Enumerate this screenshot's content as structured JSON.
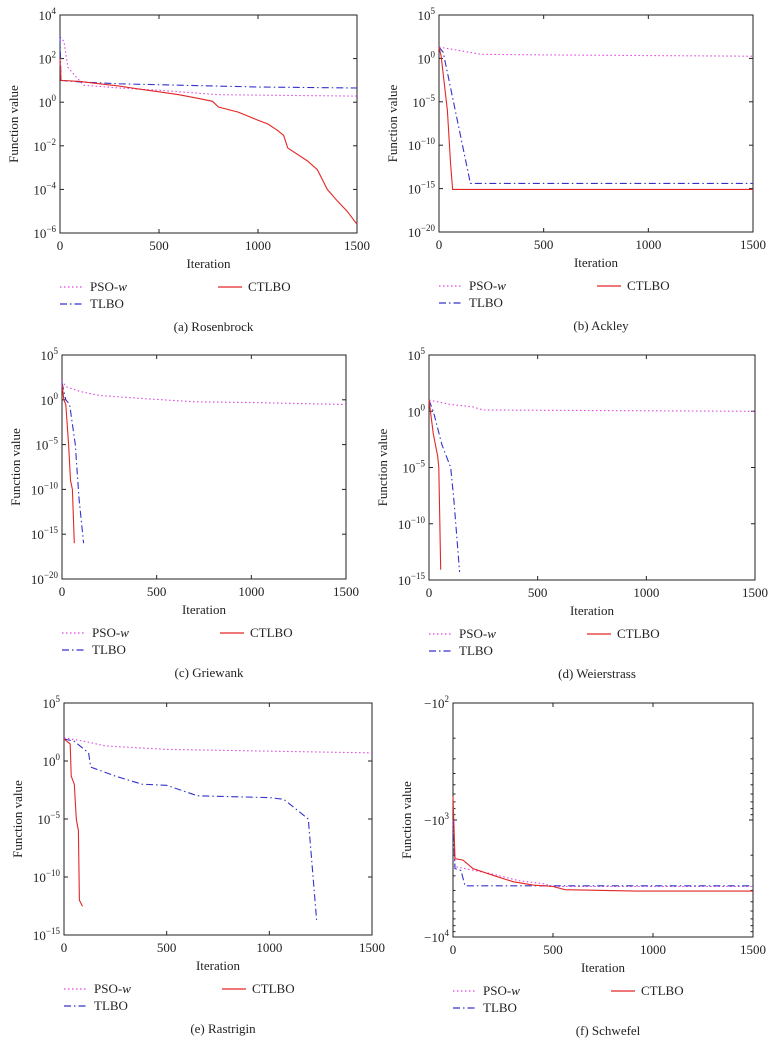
{
  "chart_data": [
    {
      "type": "line",
      "title": "(a)  Rosenbrock",
      "xlabel": "Iteration",
      "ylabel": "Function value",
      "xlim": [
        0,
        1500
      ],
      "ylim": [
        1e-06,
        10000.0
      ],
      "yscale": "log",
      "x_ticks": [
        "0",
        "500",
        "1000",
        "1500"
      ],
      "y_ticks": [
        "10^4",
        "10^2",
        "10^0",
        "10^-2",
        "10^-4",
        "10^-6"
      ],
      "series": [
        {
          "name": "PSO-w",
          "points": [
            [
              0,
              1000
            ],
            [
              20,
              600
            ],
            [
              40,
              40
            ],
            [
              80,
              15
            ],
            [
              120,
              6
            ],
            [
              300,
              4.5
            ],
            [
              500,
              3.5
            ],
            [
              800,
              2.2
            ],
            [
              1500,
              1.9
            ]
          ]
        },
        {
          "name": "TLBO",
          "points": [
            [
              0,
              1000
            ],
            [
              5,
              10
            ],
            [
              100,
              8.5
            ],
            [
              300,
              7
            ],
            [
              600,
              6
            ],
            [
              1000,
              5
            ],
            [
              1500,
              4.5
            ]
          ]
        },
        {
          "name": "CTLBO",
          "points": [
            [
              0,
              100
            ],
            [
              5,
              10
            ],
            [
              100,
              9
            ],
            [
              200,
              7
            ],
            [
              300,
              5.5
            ],
            [
              400,
              4
            ],
            [
              500,
              3
            ],
            [
              600,
              2.2
            ],
            [
              700,
              1.5
            ],
            [
              770,
              1.1
            ],
            [
              800,
              0.6
            ],
            [
              900,
              0.35
            ],
            [
              1000,
              0.15
            ],
            [
              1050,
              0.1
            ],
            [
              1100,
              0.05
            ],
            [
              1130,
              0.03
            ],
            [
              1150,
              0.008
            ],
            [
              1250,
              0.002
            ],
            [
              1300,
              0.0008
            ],
            [
              1350,
              0.0001
            ],
            [
              1400,
              3e-05
            ],
            [
              1450,
              1e-05
            ],
            [
              1500,
              2.5e-06
            ]
          ]
        }
      ]
    },
    {
      "type": "line",
      "title": "(b)  Ackley",
      "xlabel": "Iteration",
      "ylabel": "Function value",
      "xlim": [
        0,
        1500
      ],
      "ylim": [
        1e-20,
        100000.0
      ],
      "yscale": "log",
      "x_ticks": [
        "0",
        "500",
        "1000",
        "1500"
      ],
      "y_ticks": [
        "10^5",
        "10^0",
        "10^-5",
        "10^-10",
        "10^-15",
        "10^-20"
      ],
      "series": [
        {
          "name": "PSO-w",
          "points": [
            [
              0,
              20
            ],
            [
              100,
              8
            ],
            [
              200,
              3
            ],
            [
              500,
              2.5
            ],
            [
              1500,
              1.8
            ]
          ]
        },
        {
          "name": "TLBO",
          "points": [
            [
              0,
              20
            ],
            [
              20,
              5
            ],
            [
              150,
              4e-15
            ],
            [
              1500,
              4e-15
            ]
          ]
        },
        {
          "name": "CTLBO",
          "points": [
            [
              0,
              20
            ],
            [
              10,
              2
            ],
            [
              40,
              1e-06
            ],
            [
              55,
              1e-12
            ],
            [
              65,
              8e-16
            ],
            [
              1500,
              8e-16
            ]
          ]
        }
      ]
    },
    {
      "type": "line",
      "title": "(c)  Griewank",
      "xlabel": "Iteration",
      "ylabel": "Function value",
      "xlim": [
        0,
        1500
      ],
      "ylim": [
        1e-20,
        100000.0
      ],
      "yscale": "log",
      "x_ticks": [
        "0",
        "500",
        "1000",
        "1500"
      ],
      "y_ticks": [
        "10^5",
        "10^0",
        "10^-5",
        "10^-10",
        "10^-15",
        "10^-20"
      ],
      "series": [
        {
          "name": "PSO-w",
          "points": [
            [
              0,
              150
            ],
            [
              20,
              30
            ],
            [
              100,
              8
            ],
            [
              200,
              3
            ],
            [
              400,
              1.5
            ],
            [
              700,
              0.6
            ],
            [
              1000,
              0.5
            ],
            [
              1500,
              0.3
            ]
          ]
        },
        {
          "name": "TLBO",
          "points": [
            [
              0,
              80
            ],
            [
              20,
              1
            ],
            [
              40,
              0.3
            ],
            [
              50,
              0.01
            ],
            [
              70,
              1e-05
            ],
            [
              90,
              1e-11
            ],
            [
              114,
              1e-16
            ]
          ]
        },
        {
          "name": "CTLBO",
          "points": [
            [
              0,
              50
            ],
            [
              10,
              1
            ],
            [
              20,
              0.3
            ],
            [
              35,
              1e-05
            ],
            [
              45,
              1e-09
            ],
            [
              55,
              1e-10
            ],
            [
              65,
              1e-16
            ]
          ]
        }
      ]
    },
    {
      "type": "line",
      "title": "(d)  Weierstrass",
      "xlabel": "Iteration",
      "ylabel": "Function value",
      "xlim": [
        0,
        1500
      ],
      "ylim": [
        1e-15,
        100000.0
      ],
      "yscale": "log",
      "x_ticks": [
        "0",
        "500",
        "1000",
        "1500"
      ],
      "y_ticks": [
        "10^5",
        "10^0",
        "10^-5",
        "10^-10",
        "10^-15"
      ],
      "series": [
        {
          "name": "PSO-w",
          "points": [
            [
              0,
              10
            ],
            [
              100,
              4
            ],
            [
              200,
              2.5
            ],
            [
              250,
              1.3
            ],
            [
              1500,
              1
            ]
          ]
        },
        {
          "name": "TLBO",
          "points": [
            [
              0,
              10
            ],
            [
              20,
              1
            ],
            [
              60,
              0.001
            ],
            [
              100,
              1e-05
            ],
            [
              115,
              1e-08
            ],
            [
              141,
              5e-15
            ]
          ]
        },
        {
          "name": "CTLBO",
          "points": [
            [
              0,
              10
            ],
            [
              20,
              0.01
            ],
            [
              40,
              0.0001
            ],
            [
              45,
              1e-05
            ],
            [
              54,
              8e-15
            ]
          ]
        }
      ]
    },
    {
      "type": "line",
      "title": "(e)  Rastrigin",
      "xlabel": "Iteration",
      "ylabel": "Function value",
      "xlim": [
        0,
        1500
      ],
      "ylim": [
        1e-15,
        100000.0
      ],
      "yscale": "log",
      "x_ticks": [
        "0",
        "500",
        "1000",
        "1500"
      ],
      "y_ticks": [
        "10^5",
        "10^0",
        "10^-5",
        "10^-10",
        "10^-15"
      ],
      "series": [
        {
          "name": "PSO-w",
          "points": [
            [
              0,
              100
            ],
            [
              100,
              50
            ],
            [
              200,
              20
            ],
            [
              500,
              10
            ],
            [
              1500,
              5
            ]
          ]
        },
        {
          "name": "TLBO",
          "points": [
            [
              0,
              80
            ],
            [
              50,
              50
            ],
            [
              120,
              5
            ],
            [
              130,
              0.3
            ],
            [
              250,
              0.05
            ],
            [
              380,
              0.01
            ],
            [
              500,
              0.008
            ],
            [
              650,
              0.001
            ],
            [
              1000,
              0.0007
            ],
            [
              1070,
              0.0005
            ],
            [
              1190,
              1e-05
            ],
            [
              1230,
              2e-14
            ]
          ]
        },
        {
          "name": "CTLBO",
          "points": [
            [
              0,
              80
            ],
            [
              30,
              30
            ],
            [
              35,
              0.05
            ],
            [
              50,
              0.01
            ],
            [
              60,
              1e-05
            ],
            [
              70,
              1e-06
            ],
            [
              75,
              1e-12
            ],
            [
              90,
              3e-13
            ]
          ]
        }
      ]
    },
    {
      "type": "line",
      "title": "(f)  Schwefel",
      "xlabel": "Iteration",
      "ylabel": "Function value",
      "xlim": [
        0,
        1500
      ],
      "ylim": [
        -10000,
        -100
      ],
      "yscale": "log-magnitude",
      "x_ticks": [
        "0",
        "500",
        "1000",
        "1500"
      ],
      "y_ticks": [
        "-10^2",
        "-10^3",
        "-10^4"
      ],
      "series": [
        {
          "name": "PSO-w",
          "points": [
            [
              0,
              -1000
            ],
            [
              10,
              -2500
            ],
            [
              200,
              -2900
            ],
            [
              330,
              -3300
            ],
            [
              450,
              -3500
            ],
            [
              500,
              -3700
            ],
            [
              1500,
              -3700
            ]
          ]
        },
        {
          "name": "TLBO",
          "points": [
            [
              0,
              -1000
            ],
            [
              10,
              -2600
            ],
            [
              40,
              -2700
            ],
            [
              60,
              -3650
            ],
            [
              1500,
              -3650
            ]
          ]
        },
        {
          "name": "CTLBO",
          "points": [
            [
              0,
              -630
            ],
            [
              10,
              -2140
            ],
            [
              50,
              -2200
            ],
            [
              100,
              -2600
            ],
            [
              200,
              -2970
            ],
            [
              300,
              -3370
            ],
            [
              400,
              -3600
            ],
            [
              500,
              -3700
            ],
            [
              560,
              -3940
            ],
            [
              930,
              -4050
            ],
            [
              1500,
              -4050
            ]
          ]
        }
      ]
    }
  ],
  "legend": {
    "pso": "PSO-",
    "pso_w": "w",
    "tlbo": "TLBO",
    "ctlbo": "CTLBO"
  },
  "colors": {
    "PSO-w": "#e043e0",
    "TLBO": "#3333cc",
    "CTLBO": "#e32626"
  }
}
